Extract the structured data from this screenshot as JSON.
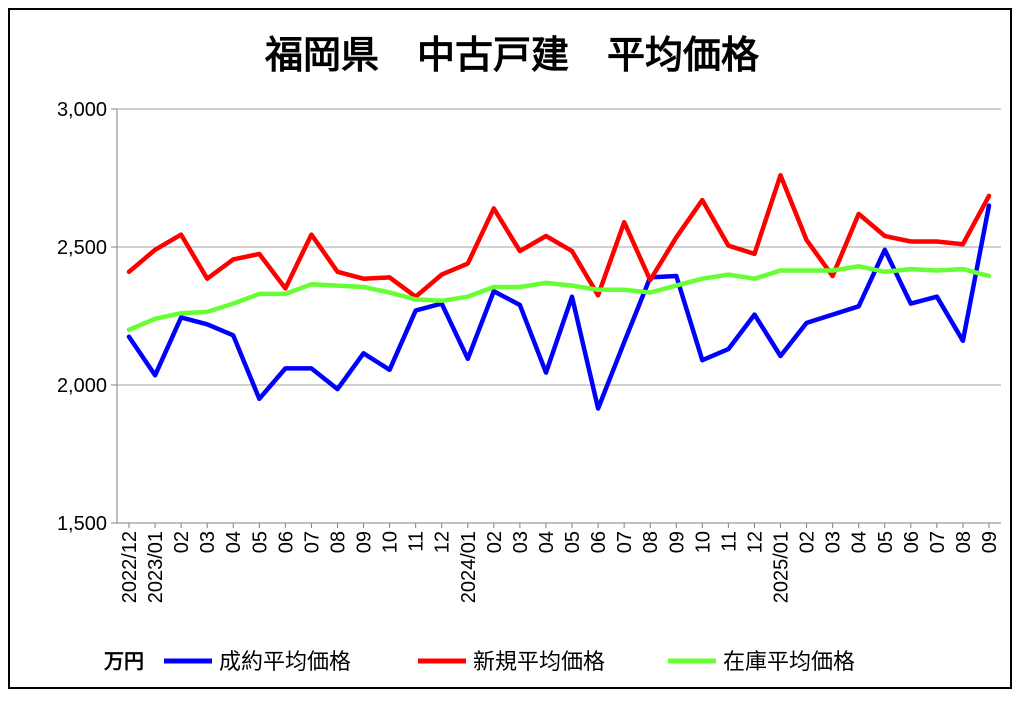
{
  "chart_data": {
    "type": "line",
    "title": "福岡県　中古戸建　平均価格",
    "unit_label": "万円",
    "ylim": [
      1500,
      3000
    ],
    "yticks": [
      3000,
      2500,
      2000,
      1500
    ],
    "ytick_labels": [
      "3,000",
      "2,500",
      "2,000",
      "1,500"
    ],
    "grid": true,
    "legend_position": "bottom",
    "categories": [
      "2022/12",
      "2023/01",
      "02",
      "03",
      "04",
      "05",
      "06",
      "07",
      "08",
      "09",
      "10",
      "11",
      "12",
      "2024/01",
      "02",
      "03",
      "04",
      "05",
      "06",
      "07",
      "08",
      "09",
      "10",
      "11",
      "12",
      "2025/01",
      "02",
      "03",
      "04",
      "05",
      "06",
      "07",
      "08",
      "09"
    ],
    "series": [
      {
        "name": "成約平均価格",
        "color": "#0000ff",
        "values": [
          2175,
          2035,
          2245,
          2220,
          2180,
          1950,
          2060,
          2060,
          1985,
          2115,
          2055,
          2270,
          2295,
          2095,
          2340,
          2290,
          2045,
          2320,
          1915,
          2155,
          2390,
          2395,
          2090,
          2130,
          2255,
          2105,
          2225,
          2255,
          2285,
          2490,
          2295,
          2320,
          2160,
          2650
        ]
      },
      {
        "name": "新規平均価格",
        "color": "#ff0000",
        "values": [
          2410,
          2490,
          2545,
          2385,
          2455,
          2475,
          2350,
          2545,
          2410,
          2385,
          2390,
          2320,
          2400,
          2440,
          2640,
          2485,
          2540,
          2485,
          2325,
          2590,
          2380,
          2535,
          2670,
          2505,
          2475,
          2760,
          2525,
          2395,
          2620,
          2540,
          2520,
          2520,
          2510,
          2685
        ]
      },
      {
        "name": "在庫平均価格",
        "color": "#66ff33",
        "values": [
          2200,
          2240,
          2260,
          2265,
          2295,
          2330,
          2330,
          2365,
          2360,
          2355,
          2335,
          2310,
          2305,
          2320,
          2355,
          2355,
          2370,
          2360,
          2345,
          2345,
          2335,
          2360,
          2385,
          2400,
          2385,
          2415,
          2415,
          2415,
          2430,
          2410,
          2420,
          2415,
          2420,
          2395
        ]
      }
    ]
  }
}
